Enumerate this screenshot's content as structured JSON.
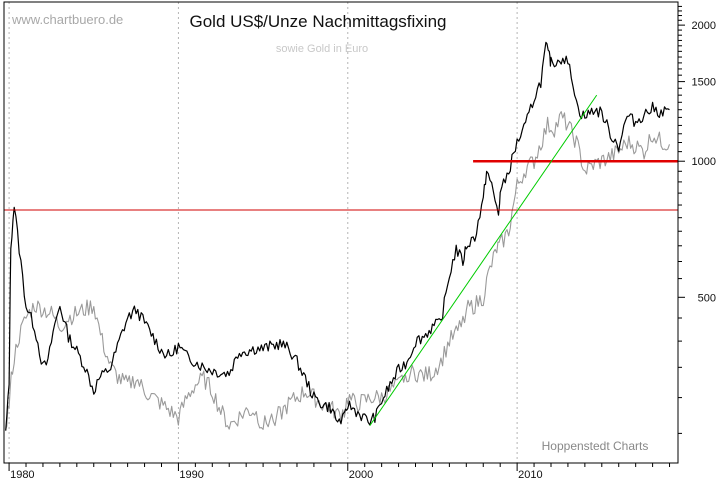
{
  "chart_data": {
    "type": "line",
    "title": "Gold US$/Unze Nachmittagsfixing",
    "subtitle": "sowie Gold in Euro",
    "watermark": "www.chartbuero.de",
    "source": "Hoppenstedt Charts",
    "y_scale": "log",
    "grid": "vertical dotted",
    "x_ticks": [
      {
        "year": 1980,
        "label": "1980"
      },
      {
        "year": 1990,
        "label": "1990"
      },
      {
        "year": 2000,
        "label": "2000"
      },
      {
        "year": 2010,
        "label": "2010"
      }
    ],
    "y_ticks": [
      {
        "value": 500,
        "label": "500"
      },
      {
        "value": 1000,
        "label": "1000"
      },
      {
        "value": 1500,
        "label": "1500"
      },
      {
        "value": 2000,
        "label": "2000"
      }
    ],
    "xlim": [
      1979.7,
      2019.5
    ],
    "ylim": [
      215,
      2250
    ],
    "series": [
      {
        "id": "usd",
        "color": "#000000",
        "x": [
          1979.8,
          1980.0,
          1980.1,
          1980.3,
          1980.6,
          1981.0,
          1981.5,
          1982.0,
          1982.3,
          1982.6,
          1983.0,
          1983.5,
          1984.0,
          1984.5,
          1985.0,
          1985.3,
          1986.0,
          1986.6,
          1987.0,
          1987.5,
          1988.0,
          1988.5,
          1989.0,
          1989.5,
          1990.0,
          1990.5,
          1991.0,
          1991.5,
          1992.0,
          1992.5,
          1993.0,
          1993.6,
          1994.0,
          1994.5,
          1995.0,
          1995.5,
          1996.0,
          1996.5,
          1997.0,
          1997.5,
          1998.0,
          1998.5,
          1999.0,
          1999.4,
          1999.8,
          2000.0,
          2000.5,
          2001.0,
          2001.3,
          2001.7,
          2002.0,
          2002.5,
          2003.0,
          2003.5,
          2004.0,
          2004.5,
          2005.0,
          2005.5,
          2006.0,
          2006.4,
          2006.8,
          2007.0,
          2007.5,
          2008.0,
          2008.2,
          2008.5,
          2008.9,
          2009.0,
          2009.5,
          2010.0,
          2010.5,
          2011.0,
          2011.4,
          2011.7,
          2011.9,
          2012.0,
          2012.3,
          2012.7,
          2013.0,
          2013.3,
          2013.6,
          2014.0,
          2014.5,
          2015.0,
          2015.5,
          2016.0,
          2016.5,
          2017.0,
          2017.5,
          2018.0,
          2018.5,
          2019.0
        ],
        "y": [
          250,
          320,
          650,
          800,
          640,
          480,
          430,
          350,
          360,
          420,
          480,
          410,
          380,
          350,
          310,
          330,
          350,
          410,
          450,
          470,
          440,
          410,
          380,
          370,
          390,
          370,
          360,
          350,
          345,
          340,
          340,
          380,
          380,
          385,
          385,
          390,
          395,
          385,
          360,
          330,
          300,
          290,
          285,
          265,
          270,
          290,
          280,
          270,
          265,
          275,
          295,
          320,
          345,
          360,
          400,
          410,
          430,
          440,
          560,
          640,
          600,
          650,
          680,
          820,
          960,
          880,
          760,
          850,
          950,
          1100,
          1200,
          1380,
          1500,
          1800,
          1700,
          1650,
          1660,
          1700,
          1650,
          1500,
          1300,
          1250,
          1300,
          1280,
          1150,
          1080,
          1260,
          1220,
          1270,
          1310,
          1280,
          1300
        ],
        "hand_drawn": true
      },
      {
        "id": "eur",
        "color": "#9a9a9a",
        "x": [
          1979.8,
          1980.0,
          1980.2,
          1980.5,
          1981.0,
          1981.5,
          1982.0,
          1982.5,
          1983.0,
          1983.5,
          1984.0,
          1984.5,
          1985.0,
          1985.5,
          1986.0,
          1986.5,
          1987.0,
          1987.5,
          1988.0,
          1988.5,
          1989.0,
          1989.5,
          1990.0,
          1990.5,
          1991.0,
          1991.5,
          1992.0,
          1992.5,
          1993.0,
          1993.5,
          1994.0,
          1994.5,
          1995.0,
          1995.5,
          1996.0,
          1996.5,
          1997.0,
          1997.5,
          1998.0,
          1998.5,
          1999.0,
          1999.4,
          1999.8,
          2000.0,
          2000.5,
          2001.0,
          2001.5,
          2002.0,
          2002.5,
          2003.0,
          2003.5,
          2004.0,
          2004.5,
          2005.0,
          2005.5,
          2006.0,
          2006.5,
          2007.0,
          2007.5,
          2008.0,
          2008.3,
          2008.8,
          2009.0,
          2009.5,
          2010.0,
          2010.5,
          2011.0,
          2011.5,
          2011.8,
          2012.2,
          2012.6,
          2013.0,
          2013.5,
          2014.0,
          2014.5,
          2015.0,
          2015.5,
          2016.0,
          2016.5,
          2017.0,
          2017.5,
          2018.0,
          2018.5,
          2019.0
        ],
        "y": [
          260,
          290,
          350,
          400,
          450,
          480,
          470,
          460,
          430,
          450,
          460,
          470,
          480,
          400,
          350,
          330,
          320,
          330,
          310,
          300,
          290,
          280,
          270,
          300,
          320,
          330,
          310,
          280,
          260,
          270,
          280,
          280,
          260,
          270,
          275,
          290,
          300,
          310,
          300,
          290,
          285,
          275,
          280,
          300,
          290,
          295,
          300,
          300,
          310,
          320,
          340,
          340,
          335,
          340,
          360,
          400,
          420,
          470,
          480,
          500,
          560,
          640,
          650,
          700,
          880,
          960,
          1000,
          1120,
          1200,
          1180,
          1250,
          1200,
          1100,
          950,
          980,
          1000,
          1020,
          1050,
          1100,
          1080,
          1050,
          1150,
          1100,
          1090
        ],
        "hand_drawn": true
      }
    ],
    "annotations": [
      {
        "type": "hline",
        "y": 780,
        "x_from": 1979.7,
        "x_to": 2019.5,
        "color": "#d00000",
        "width": "thin"
      },
      {
        "type": "hline",
        "y": 1000,
        "x_from": 2007.4,
        "x_to": 2019.5,
        "color": "#e00000",
        "width": "thick"
      },
      {
        "type": "trendline",
        "from": [
          2001.3,
          260
        ],
        "to": [
          2014.7,
          1400
        ],
        "color": "#00cc00"
      }
    ]
  }
}
